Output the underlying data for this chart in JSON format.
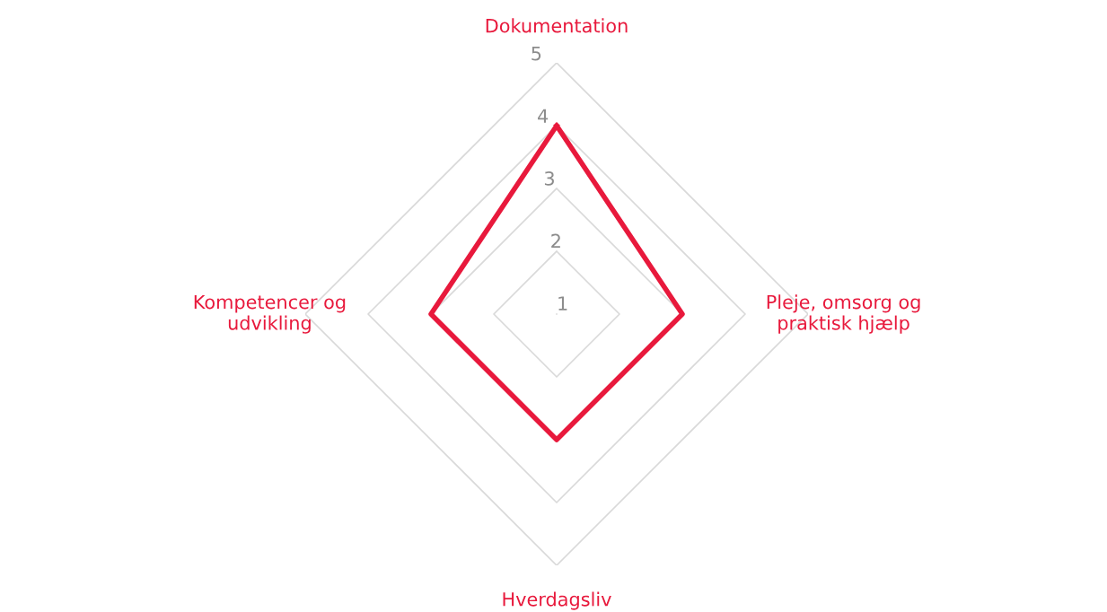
{
  "chart_data": {
    "type": "radar",
    "categories": [
      "Dokumentation",
      "Pleje, omsorg og\npraktisk hjælp",
      "Hverdagsliv",
      "Kompetencer og\nudvikling"
    ],
    "series": [
      {
        "color": "#e8193c",
        "values": [
          4,
          3,
          3,
          3
        ]
      }
    ],
    "ylim": [
      1,
      5
    ],
    "yticks": [
      1,
      2,
      3,
      4,
      5
    ],
    "grid": true,
    "legend": false,
    "marker": "none",
    "line_style": "solid"
  }
}
